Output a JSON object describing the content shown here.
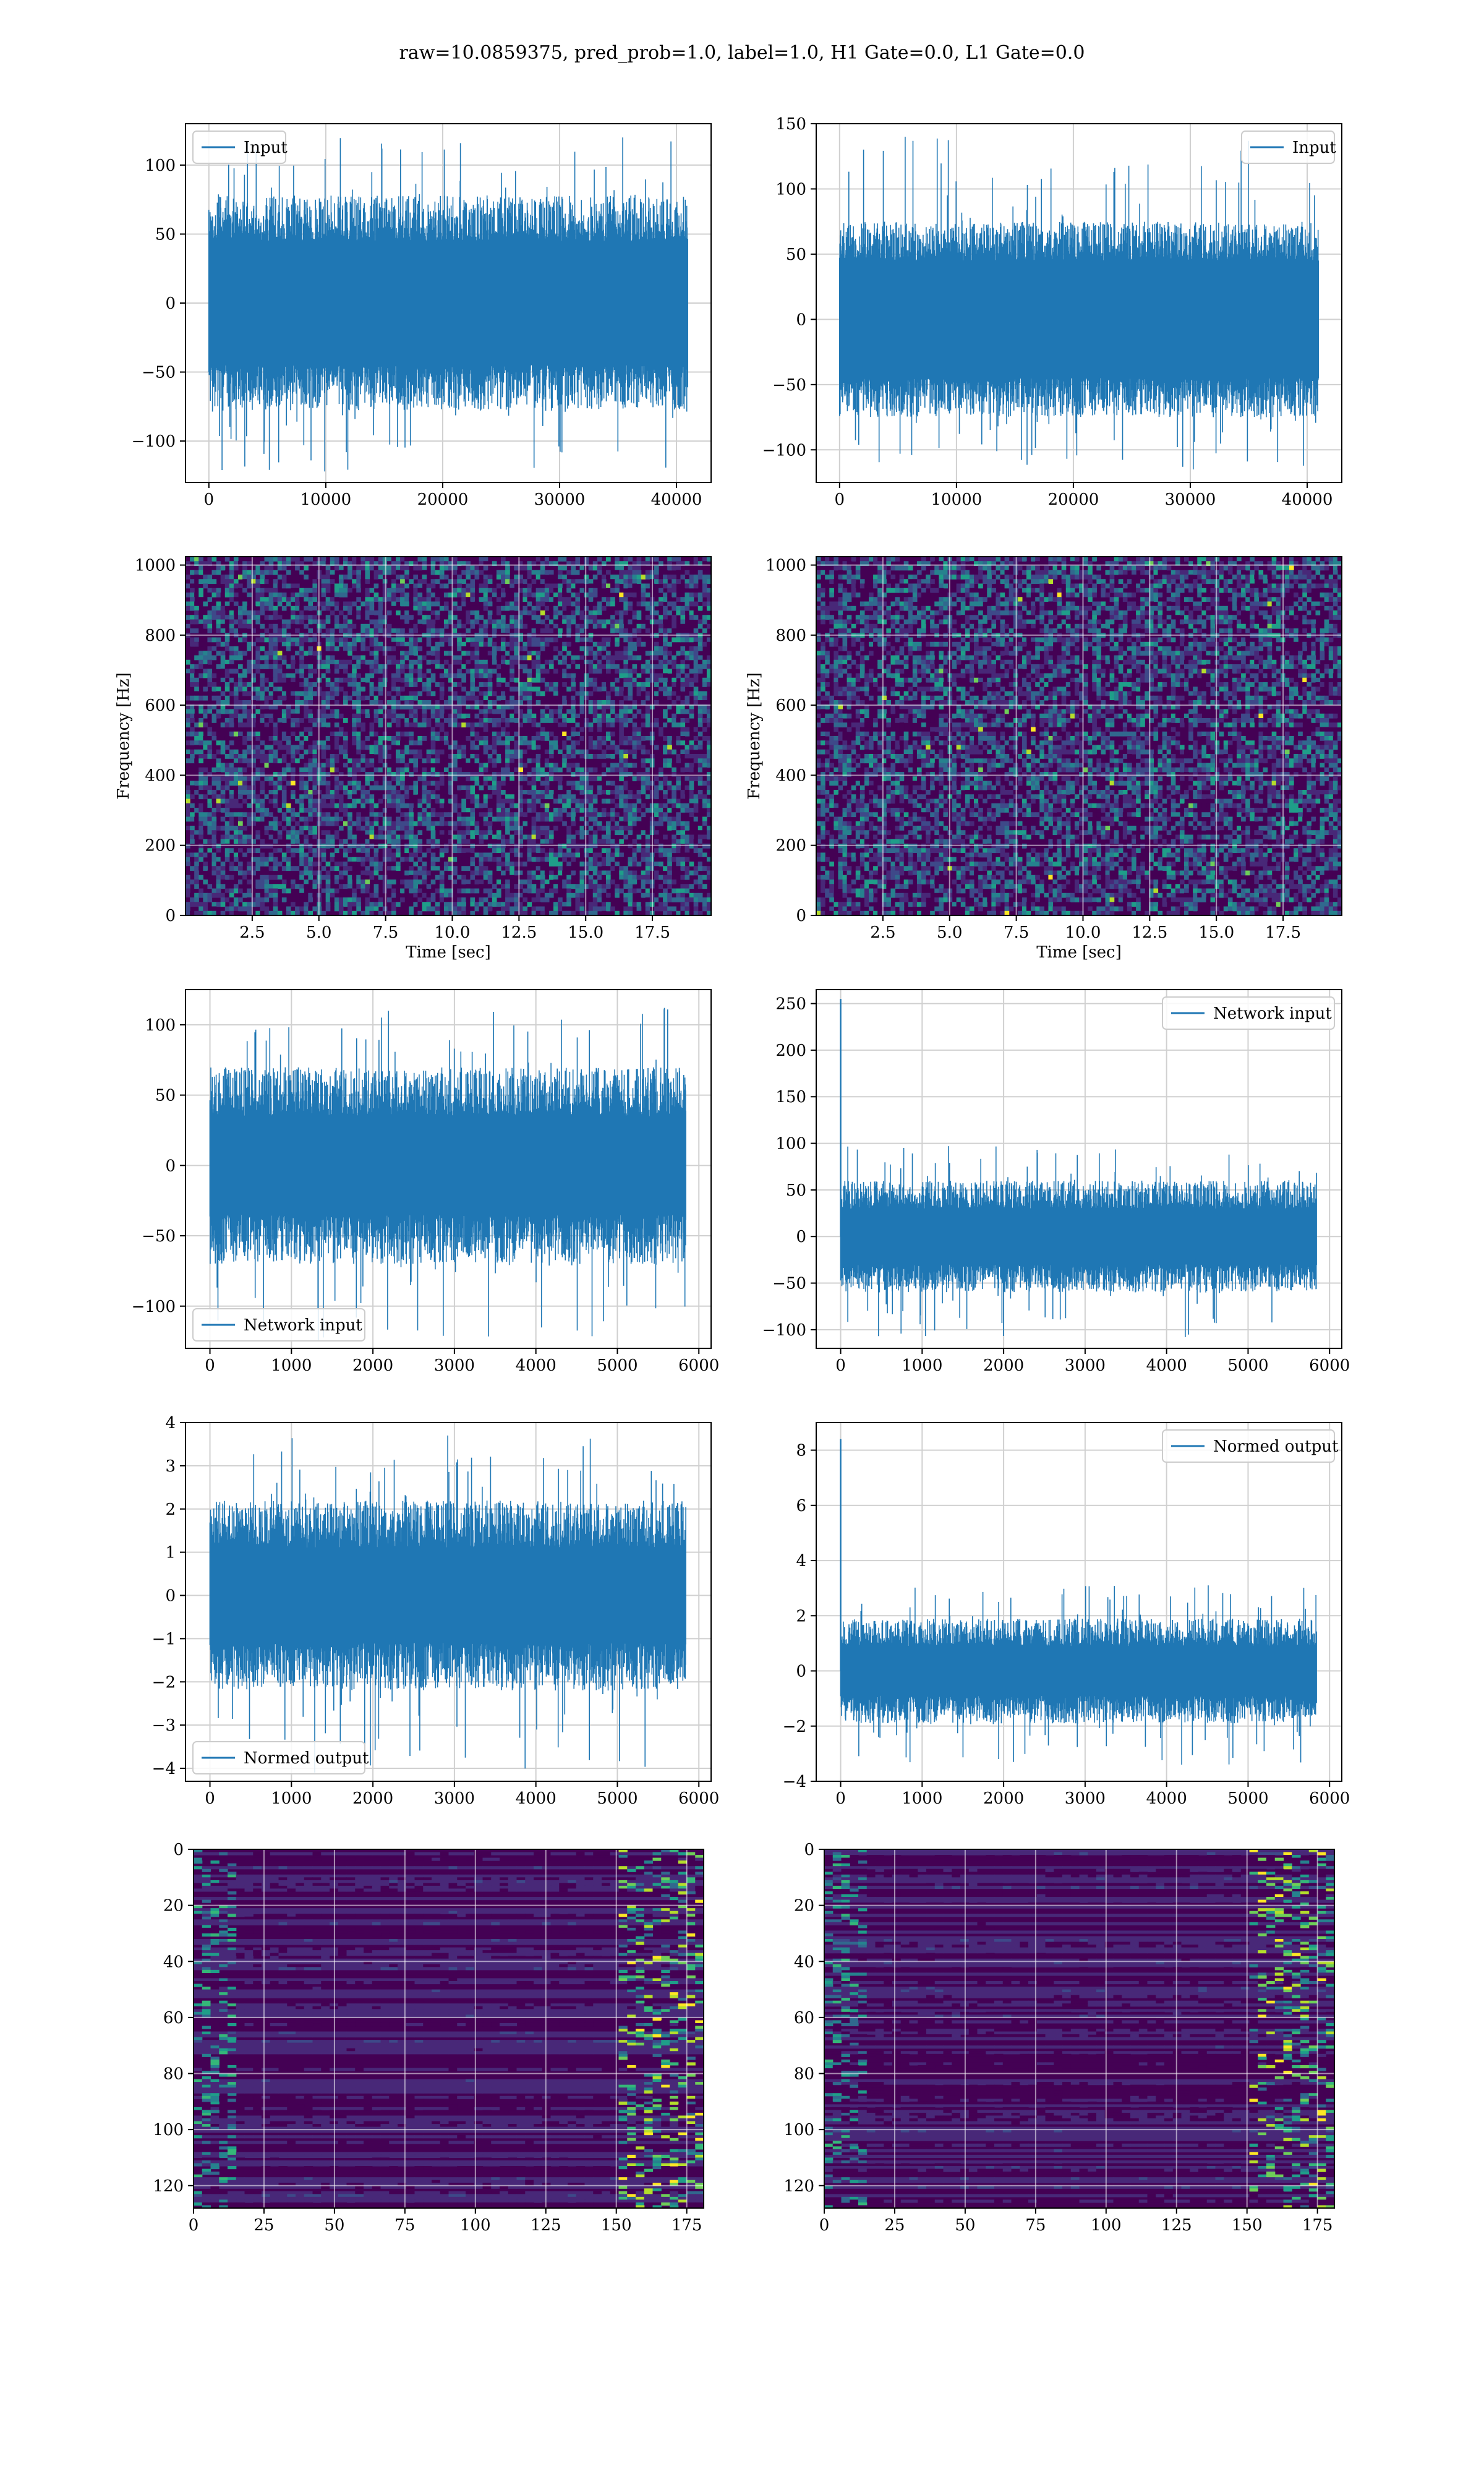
{
  "figure_title": "raw=10.0859375, pred_prob=1.0, label=1.0, H1 Gate=0.0, L1 Gate=0.0",
  "colors": {
    "line": "#1f77b4",
    "viridis_low": "#440154",
    "viridis_mid": "#31688e",
    "viridis_high": "#fde725",
    "grid": "#d0d0d0"
  },
  "chart_data": [
    {
      "id": "p1",
      "type": "line",
      "legend": "Input",
      "legend_loc": "upper left",
      "xlim": [
        -2000,
        42960
      ],
      "ylim": [
        -130,
        130
      ],
      "xticks": [
        0,
        10000,
        20000,
        30000,
        40000
      ],
      "yticks": [
        -100,
        -50,
        0,
        50,
        100
      ],
      "x_extent": [
        0,
        40960
      ],
      "amplitude": {
        "core": [
          -45,
          45
        ],
        "envelope": [
          -78,
          78
        ],
        "peaks_max": 120,
        "peaks_min": -122
      },
      "grid": true
    },
    {
      "id": "p2",
      "type": "line",
      "legend": "Input",
      "legend_loc": "upper right",
      "xlim": [
        -2000,
        42960
      ],
      "ylim": [
        -125,
        150
      ],
      "xticks": [
        0,
        10000,
        20000,
        30000,
        40000
      ],
      "yticks": [
        -100,
        -50,
        0,
        50,
        100,
        150
      ],
      "x_extent": [
        0,
        40960
      ],
      "amplitude": {
        "core": [
          -45,
          45
        ],
        "envelope": [
          -75,
          75
        ],
        "peaks_max": 140,
        "peaks_min": -115
      },
      "grid": true
    },
    {
      "id": "p3",
      "type": "heatmap",
      "xlabel": "Time [sec]",
      "ylabel": "Frequency [Hz]",
      "xlim": [
        0,
        19.7
      ],
      "ylim": [
        0,
        1024
      ],
      "xticks": [
        2.5,
        5.0,
        7.5,
        10.0,
        12.5,
        15.0,
        17.5
      ],
      "yticks": [
        0,
        200,
        400,
        600,
        800,
        1000
      ],
      "colormap": "viridis",
      "grid": true
    },
    {
      "id": "p4",
      "type": "heatmap",
      "xlabel": "Time [sec]",
      "ylabel": "Frequency [Hz]",
      "xlim": [
        0,
        19.7
      ],
      "ylim": [
        0,
        1024
      ],
      "xticks": [
        2.5,
        5.0,
        7.5,
        10.0,
        12.5,
        15.0,
        17.5
      ],
      "yticks": [
        0,
        200,
        400,
        600,
        800,
        1000
      ],
      "colormap": "viridis",
      "grid": true
    },
    {
      "id": "p5",
      "type": "line",
      "legend": "Network input",
      "legend_loc": "lower left",
      "xlim": [
        -300,
        6150
      ],
      "ylim": [
        -130,
        125
      ],
      "xticks": [
        0,
        1000,
        2000,
        3000,
        4000,
        5000,
        6000
      ],
      "yticks": [
        -100,
        -50,
        0,
        50,
        100
      ],
      "x_extent": [
        0,
        5840
      ],
      "amplitude": {
        "core": [
          -35,
          35
        ],
        "envelope": [
          -70,
          70
        ],
        "peaks_max": 112,
        "peaks_min": -125
      },
      "grid": true
    },
    {
      "id": "p6",
      "type": "line",
      "legend": "Network input",
      "legend_loc": "upper right",
      "xlim": [
        -300,
        6150
      ],
      "ylim": [
        -120,
        265
      ],
      "xticks": [
        0,
        1000,
        2000,
        3000,
        4000,
        5000,
        6000
      ],
      "yticks": [
        -100,
        -50,
        0,
        50,
        100,
        150,
        200,
        250
      ],
      "x_extent": [
        0,
        5840
      ],
      "amplitude": {
        "core": [
          -30,
          30
        ],
        "envelope": [
          -60,
          60
        ],
        "peaks_max": 97,
        "peaks_min": -108
      },
      "spike": {
        "x": 0,
        "value": 255
      },
      "grid": true
    },
    {
      "id": "p7",
      "type": "line",
      "legend": "Normed output",
      "legend_loc": "lower left",
      "xlim": [
        -300,
        6150
      ],
      "ylim": [
        -4.3,
        4.0
      ],
      "xticks": [
        0,
        1000,
        2000,
        3000,
        4000,
        5000,
        6000
      ],
      "yticks": [
        -4,
        -3,
        -2,
        -1,
        0,
        1,
        2,
        3,
        4
      ],
      "x_extent": [
        0,
        5840
      ],
      "amplitude": {
        "core": [
          -1.1,
          1.1
        ],
        "envelope": [
          -2.2,
          2.2
        ],
        "peaks_max": 3.7,
        "peaks_min": -4.1
      },
      "grid": true
    },
    {
      "id": "p8",
      "type": "line",
      "legend": "Normed output",
      "legend_loc": "upper right",
      "xlim": [
        -300,
        6150
      ],
      "ylim": [
        -4.0,
        9.0
      ],
      "xticks": [
        0,
        1000,
        2000,
        3000,
        4000,
        5000,
        6000
      ],
      "yticks": [
        -4,
        -2,
        0,
        2,
        4,
        6,
        8
      ],
      "x_extent": [
        0,
        5840
      ],
      "amplitude": {
        "core": [
          -0.9,
          0.9
        ],
        "envelope": [
          -1.9,
          1.9
        ],
        "peaks_max": 3.1,
        "peaks_min": -3.4
      },
      "spike": {
        "x": 0,
        "value": 8.4
      },
      "grid": true
    },
    {
      "id": "p9",
      "type": "heatmap",
      "xlim": [
        0,
        181
      ],
      "ylim": [
        128,
        0
      ],
      "xticks": [
        0,
        25,
        50,
        75,
        100,
        125,
        150,
        175
      ],
      "yticks": [
        0,
        20,
        40,
        60,
        80,
        100,
        120
      ],
      "colormap": "viridis",
      "grid": true
    },
    {
      "id": "p10",
      "type": "heatmap",
      "xlim": [
        0,
        181
      ],
      "ylim": [
        128,
        0
      ],
      "xticks": [
        0,
        25,
        50,
        75,
        100,
        125,
        150,
        175
      ],
      "yticks": [
        0,
        20,
        40,
        60,
        80,
        100,
        120
      ],
      "colormap": "viridis",
      "grid": true
    }
  ]
}
